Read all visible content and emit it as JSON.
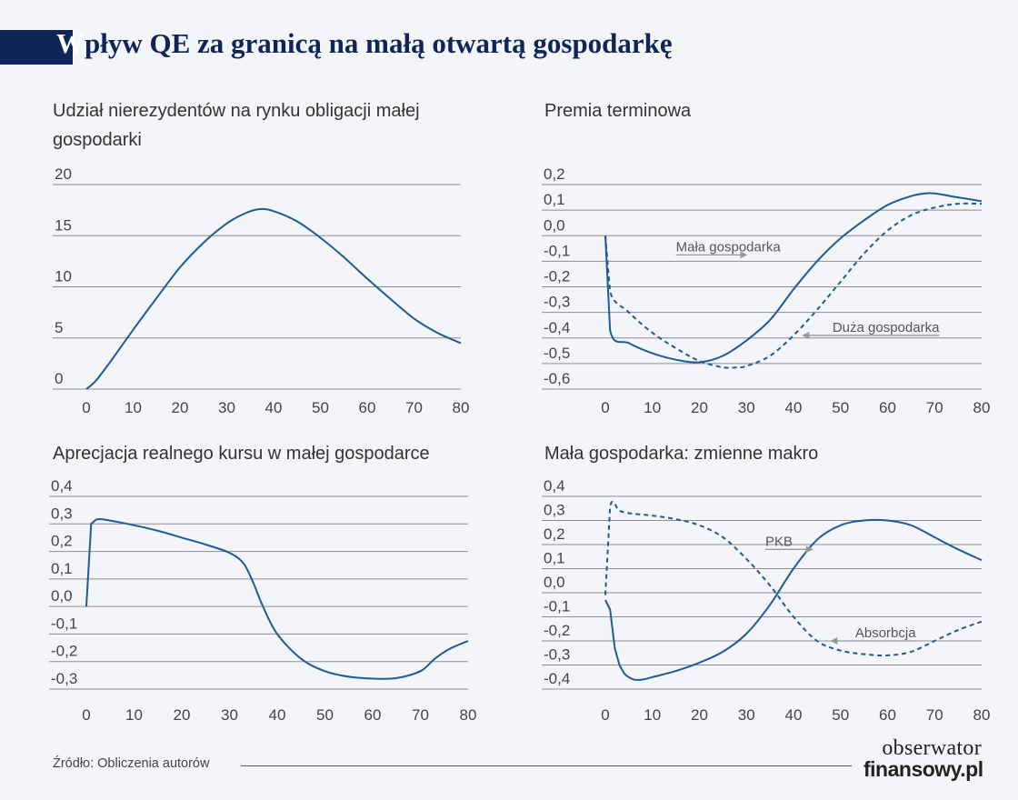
{
  "header": {
    "title_first": "W",
    "title_rest": "pływ QE za granicą na małą otwartą gospodarkę"
  },
  "footer": {
    "source": "Źródło: Obliczenia autorów",
    "logo_line1": "obserwator",
    "logo_line2": "finansowy.pl"
  },
  "colors": {
    "line": "#1f5b96",
    "grid": "#8e8e8e",
    "arrow": "#999999",
    "title_bar": "#0f2558",
    "background": "#f3f5f8"
  },
  "chart_data": [
    {
      "id": "nonresident",
      "type": "line",
      "title_lines": [
        "Udział nierezydentów na rynku obligacji małej",
        "gospodarki"
      ],
      "xlim": [
        0,
        80
      ],
      "ylim": [
        0,
        20
      ],
      "x_ticks": [
        0,
        10,
        20,
        30,
        40,
        50,
        60,
        70,
        80
      ],
      "y_ticks": [
        0,
        5,
        10,
        15,
        20
      ],
      "y_tick_labels": [
        "0",
        "5",
        "10",
        "15",
        "20"
      ],
      "series": [
        {
          "style": "solid",
          "points": [
            [
              0,
              0
            ],
            [
              2,
              0.8
            ],
            [
              5,
              2.6
            ],
            [
              10,
              5.8
            ],
            [
              15,
              8.9
            ],
            [
              20,
              11.9
            ],
            [
              25,
              14.3
            ],
            [
              30,
              16.2
            ],
            [
              34,
              17.2
            ],
            [
              37,
              17.6
            ],
            [
              40,
              17.4
            ],
            [
              45,
              16.4
            ],
            [
              50,
              14.8
            ],
            [
              55,
              12.9
            ],
            [
              60,
              10.8
            ],
            [
              65,
              8.8
            ],
            [
              70,
              6.9
            ],
            [
              75,
              5.5
            ],
            [
              80,
              4.5
            ]
          ]
        }
      ],
      "annotations": []
    },
    {
      "id": "term_premium",
      "type": "line",
      "title_lines": [
        "Premia terminowa"
      ],
      "xlim": [
        0,
        80
      ],
      "ylim": [
        -0.6,
        0.2
      ],
      "x_ticks": [
        0,
        10,
        20,
        30,
        40,
        50,
        60,
        70,
        80
      ],
      "y_ticks": [
        0.2,
        0.1,
        0.0,
        -0.1,
        -0.2,
        -0.3,
        -0.4,
        -0.5,
        -0.6
      ],
      "y_tick_labels": [
        "0,2",
        "0,1",
        "0,0",
        "-0,1",
        "-0,2",
        "-0,3",
        "-0,4",
        "-0,5",
        "-0,6"
      ],
      "series": [
        {
          "style": "solid",
          "points": [
            [
              0,
              0
            ],
            [
              1,
              -0.37
            ],
            [
              5,
              -0.42
            ],
            [
              10,
              -0.46
            ],
            [
              15,
              -0.485
            ],
            [
              20,
              -0.495
            ],
            [
              25,
              -0.47
            ],
            [
              30,
              -0.41
            ],
            [
              35,
              -0.33
            ],
            [
              40,
              -0.21
            ],
            [
              45,
              -0.1
            ],
            [
              50,
              -0.01
            ],
            [
              55,
              0.06
            ],
            [
              60,
              0.12
            ],
            [
              65,
              0.155
            ],
            [
              68,
              0.165
            ],
            [
              70,
              0.165
            ],
            [
              75,
              0.15
            ],
            [
              80,
              0.135
            ]
          ]
        },
        {
          "style": "dashed",
          "points": [
            [
              0,
              0
            ],
            [
              1,
              -0.22
            ],
            [
              5,
              -0.3
            ],
            [
              10,
              -0.38
            ],
            [
              15,
              -0.44
            ],
            [
              20,
              -0.49
            ],
            [
              25,
              -0.515
            ],
            [
              28,
              -0.515
            ],
            [
              30,
              -0.51
            ],
            [
              35,
              -0.47
            ],
            [
              40,
              -0.39
            ],
            [
              45,
              -0.29
            ],
            [
              50,
              -0.18
            ],
            [
              55,
              -0.07
            ],
            [
              60,
              0.02
            ],
            [
              65,
              0.08
            ],
            [
              70,
              0.11
            ],
            [
              75,
              0.125
            ],
            [
              80,
              0.125
            ]
          ]
        }
      ],
      "annotations": [
        {
          "text": "Mała gospodarka",
          "arrow_dir": "right",
          "x0": 15,
          "x1": 30,
          "y": -0.075,
          "text_anchor": "start"
        },
        {
          "text": "Duża gospodarka",
          "arrow_dir": "left",
          "x0": 42,
          "x1": 71,
          "y": -0.39,
          "text_anchor": "end"
        }
      ]
    },
    {
      "id": "real_exchange",
      "type": "line",
      "title_lines": [
        "Aprecjacja realnego kursu w małej gospodarce"
      ],
      "xlim": [
        0,
        80
      ],
      "ylim": [
        -0.3,
        0.4
      ],
      "x_ticks": [
        0,
        10,
        20,
        30,
        40,
        50,
        60,
        70,
        80
      ],
      "y_ticks": [
        0.4,
        0.3,
        0.2,
        0.1,
        0.0,
        -0.1,
        -0.2,
        -0.3
      ],
      "y_tick_labels": [
        "0,4",
        "0,3",
        "0,2",
        "0,1",
        "0,0",
        "-0,1",
        "-0,2",
        "-0,3"
      ],
      "series": [
        {
          "style": "solid",
          "points": [
            [
              0,
              0
            ],
            [
              1,
              0.3
            ],
            [
              2,
              0.315
            ],
            [
              4,
              0.315
            ],
            [
              10,
              0.295
            ],
            [
              15,
              0.275
            ],
            [
              20,
              0.25
            ],
            [
              25,
              0.225
            ],
            [
              30,
              0.195
            ],
            [
              33,
              0.155
            ],
            [
              35,
              0.085
            ],
            [
              37,
              0.0
            ],
            [
              40,
              -0.1
            ],
            [
              45,
              -0.19
            ],
            [
              50,
              -0.235
            ],
            [
              55,
              -0.255
            ],
            [
              60,
              -0.262
            ],
            [
              65,
              -0.26
            ],
            [
              70,
              -0.235
            ],
            [
              73,
              -0.19
            ],
            [
              76,
              -0.155
            ],
            [
              80,
              -0.125
            ]
          ]
        }
      ],
      "annotations": []
    },
    {
      "id": "macro",
      "type": "line",
      "title_lines": [
        "Mała gospodarka: zmienne makro"
      ],
      "xlim": [
        0,
        80
      ],
      "ylim": [
        -0.4,
        0.4
      ],
      "x_ticks": [
        0,
        10,
        20,
        30,
        40,
        50,
        60,
        70,
        80
      ],
      "y_ticks": [
        0.4,
        0.3,
        0.2,
        0.1,
        0.0,
        -0.1,
        -0.2,
        -0.3,
        -0.4
      ],
      "y_tick_labels": [
        "0,4",
        "0,3",
        "0,2",
        "0,1",
        "0,0",
        "-0,1",
        "-0,2",
        "-0,3",
        "-0,4"
      ],
      "series": [
        {
          "style": "solid",
          "points": [
            [
              0,
              -0.03
            ],
            [
              1,
              -0.07
            ],
            [
              2,
              -0.23
            ],
            [
              3,
              -0.3
            ],
            [
              4,
              -0.335
            ],
            [
              6,
              -0.36
            ],
            [
              8,
              -0.36
            ],
            [
              10,
              -0.35
            ],
            [
              15,
              -0.325
            ],
            [
              20,
              -0.29
            ],
            [
              25,
              -0.245
            ],
            [
              30,
              -0.17
            ],
            [
              35,
              -0.05
            ],
            [
              40,
              0.1
            ],
            [
              45,
              0.22
            ],
            [
              50,
              0.28
            ],
            [
              55,
              0.3
            ],
            [
              60,
              0.3
            ],
            [
              65,
              0.28
            ],
            [
              70,
              0.23
            ],
            [
              75,
              0.18
            ],
            [
              80,
              0.135
            ]
          ]
        },
        {
          "style": "dashed",
          "points": [
            [
              0,
              -0.01
            ],
            [
              1,
              0.355
            ],
            [
              3,
              0.34
            ],
            [
              5,
              0.33
            ],
            [
              10,
              0.32
            ],
            [
              15,
              0.305
            ],
            [
              20,
              0.28
            ],
            [
              25,
              0.23
            ],
            [
              30,
              0.14
            ],
            [
              35,
              0.03
            ],
            [
              40,
              -0.1
            ],
            [
              45,
              -0.2
            ],
            [
              50,
              -0.24
            ],
            [
              55,
              -0.255
            ],
            [
              60,
              -0.26
            ],
            [
              65,
              -0.245
            ],
            [
              70,
              -0.2
            ],
            [
              75,
              -0.155
            ],
            [
              80,
              -0.12
            ]
          ]
        }
      ],
      "annotations": [
        {
          "text": "PKB",
          "arrow_dir": "right",
          "x0": 34,
          "x1": 44,
          "y": 0.18,
          "text_anchor": "start"
        },
        {
          "text": "Absorbcja",
          "arrow_dir": "left",
          "x0": 48,
          "x1": 66,
          "y": -0.2,
          "text_anchor": "end"
        }
      ]
    }
  ]
}
